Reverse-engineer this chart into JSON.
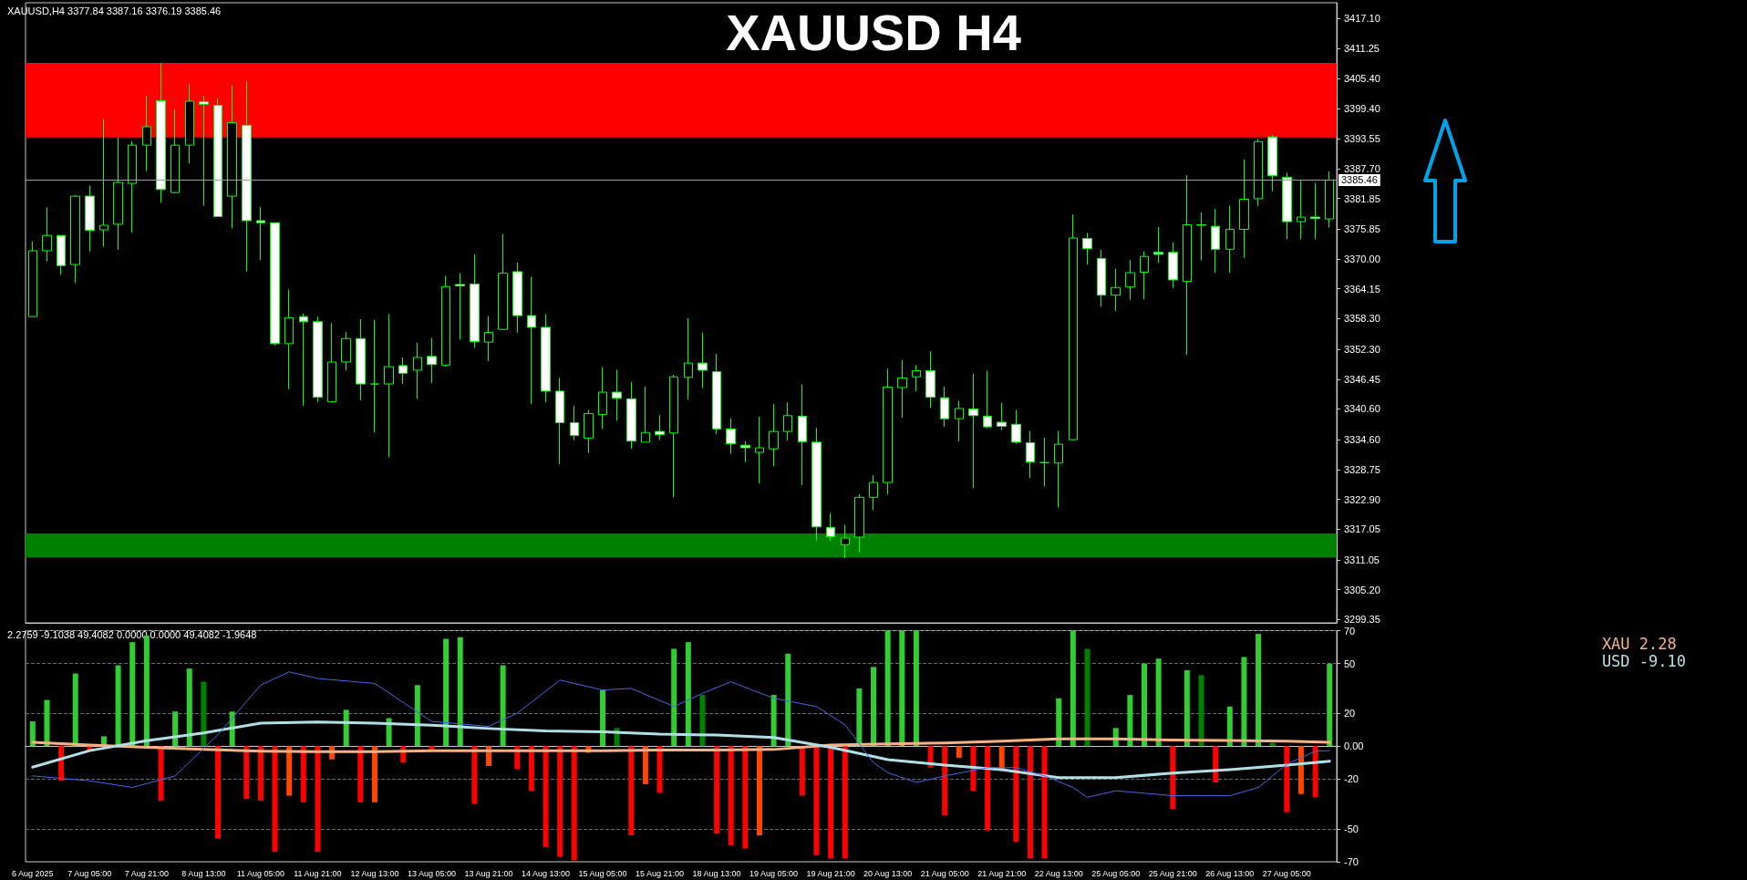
{
  "chart_data": [
    {
      "type": "candlestick",
      "title": "XAUUSD H4",
      "color": "#00ff00",
      "tick_labels": "y",
      "annotations": [
        "XAUUSD,H4 3377.84 3387.16 3376.19 3385.46"
      ],
      "categories": [
        null,
        null,
        null,
        null,
        null,
        null,
        null,
        null,
        null,
        null,
        null,
        null,
        null,
        null,
        null,
        null,
        null,
        null,
        null,
        null,
        null,
        null,
        null,
        null,
        null,
        null,
        null,
        null,
        null,
        null,
        null,
        null,
        null,
        null,
        null,
        null,
        null,
        null,
        null,
        null,
        null,
        null,
        null,
        null,
        null,
        null,
        null,
        null,
        null,
        null,
        null,
        null,
        null,
        null,
        null,
        null,
        null,
        null,
        null,
        null,
        null,
        null,
        null,
        null,
        null,
        null,
        null,
        null,
        null,
        null,
        null,
        null,
        null,
        null,
        null,
        null,
        null,
        null,
        null,
        null,
        null,
        null,
        null,
        null,
        null,
        null,
        null,
        null,
        null,
        null,
        null,
        null
      ],
      "ohlc": [
        [
          3358.7,
          3373.4,
          3358.7,
          3371.6
        ],
        [
          3371.6,
          3380.1,
          3369.5,
          3374.6
        ],
        [
          3374.6,
          3374.6,
          3366.9,
          3368.7
        ],
        [
          3368.9,
          3382.5,
          3365.3,
          3382.3
        ],
        [
          3382.3,
          3384.4,
          3371.5,
          3375.6
        ],
        [
          3375.7,
          3397.4,
          3372.4,
          3376.6
        ],
        [
          3376.8,
          3393.8,
          3371.8,
          3385.0
        ],
        [
          3384.8,
          3393.1,
          3375.2,
          3392.3
        ],
        [
          3392.3,
          3401.9,
          3387.2,
          3395.9
        ],
        [
          3401.0,
          3408.4,
          3381.0,
          3383.6
        ],
        [
          3383.0,
          3399.3,
          3382.8,
          3392.3
        ],
        [
          3392.3,
          3404.2,
          3388.7,
          3400.9
        ],
        [
          3400.8,
          3401.9,
          3380.4,
          3400.3
        ],
        [
          3400.1,
          3401.4,
          3378.2,
          3378.3
        ],
        [
          3382.3,
          3404.0,
          3376.0,
          3396.7
        ],
        [
          3396.2,
          3404.8,
          3367.6,
          3377.5
        ],
        [
          3377.5,
          3380.2,
          3369.8,
          3377.1
        ],
        [
          3377.1,
          3377.1,
          3353.0,
          3353.4
        ],
        [
          3353.4,
          3364.0,
          3344.5,
          3358.5
        ],
        [
          3358.7,
          3359.3,
          3341.2,
          3357.7
        ],
        [
          3357.7,
          3358.7,
          3341.9,
          3342.9
        ],
        [
          3342.0,
          3357.4,
          3342.0,
          3349.8
        ],
        [
          3349.8,
          3355.7,
          3348.2,
          3354.4
        ],
        [
          3354.4,
          3358.2,
          3342.3,
          3345.5
        ],
        [
          3345.5,
          3358.1,
          3336.0,
          3345.5
        ],
        [
          3345.5,
          3359.2,
          3331.1,
          3348.9
        ],
        [
          3349.1,
          3350.7,
          3345.5,
          3347.6
        ],
        [
          3348.2,
          3353.6,
          3342.6,
          3350.7
        ],
        [
          3350.9,
          3354.5,
          3345.7,
          3349.3
        ],
        [
          3349.2,
          3366.7,
          3348.9,
          3364.6
        ],
        [
          3365.0,
          3367.2,
          3354.2,
          3364.7
        ],
        [
          3365.1,
          3370.9,
          3352.6,
          3353.8
        ],
        [
          3353.7,
          3358.8,
          3350.0,
          3355.6
        ],
        [
          3356.2,
          3374.9,
          3356.1,
          3367.2
        ],
        [
          3367.5,
          3369.3,
          3355.5,
          3358.9
        ],
        [
          3358.9,
          3366.5,
          3341.6,
          3356.6
        ],
        [
          3356.6,
          3359.2,
          3341.9,
          3344.1
        ],
        [
          3344.1,
          3346.7,
          3329.8,
          3337.9
        ],
        [
          3337.9,
          3341.2,
          3334.5,
          3335.4
        ],
        [
          3334.9,
          3340.4,
          3332.0,
          3339.7
        ],
        [
          3339.5,
          3348.8,
          3336.7,
          3343.9
        ],
        [
          3343.9,
          3348.3,
          3338.3,
          3342.7
        ],
        [
          3342.6,
          3345.9,
          3332.8,
          3334.3
        ],
        [
          3334.1,
          3345.0,
          3334.1,
          3336.0
        ],
        [
          3336.2,
          3339.4,
          3334.5,
          3335.6
        ],
        [
          3335.9,
          3347.3,
          3323.3,
          3346.9
        ],
        [
          3346.8,
          3358.4,
          3342.4,
          3349.6
        ],
        [
          3349.6,
          3355.5,
          3344.7,
          3348.2
        ],
        [
          3347.9,
          3351.4,
          3335.7,
          3336.7
        ],
        [
          3336.7,
          3338.8,
          3331.8,
          3333.8
        ],
        [
          3333.5,
          3334.3,
          3330.2,
          3333.0
        ],
        [
          3332.1,
          3339.1,
          3326.0,
          3333.0
        ],
        [
          3332.8,
          3341.6,
          3329.4,
          3336.2
        ],
        [
          3336.2,
          3341.9,
          3334.4,
          3339.3
        ],
        [
          3339.2,
          3345.4,
          3325.7,
          3334.2
        ],
        [
          3334.1,
          3336.9,
          3314.8,
          3317.5
        ],
        [
          3317.4,
          3320.2,
          3314.8,
          3315.6
        ],
        [
          3314.0,
          3317.9,
          3311.4,
          3315.3
        ],
        [
          3315.5,
          3323.9,
          3312.5,
          3323.3
        ],
        [
          3323.3,
          3327.6,
          3320.8,
          3326.2
        ],
        [
          3326.2,
          3348.5,
          3323.9,
          3344.9
        ],
        [
          3344.8,
          3350.2,
          3338.9,
          3346.7
        ],
        [
          3346.9,
          3349.2,
          3344.1,
          3348.1
        ],
        [
          3348.1,
          3351.9,
          3340.8,
          3342.9
        ],
        [
          3342.8,
          3345.0,
          3337.1,
          3338.7
        ],
        [
          3338.7,
          3342.2,
          3334.3,
          3340.7
        ],
        [
          3340.6,
          3347.5,
          3325.1,
          3339.3
        ],
        [
          3339.2,
          3348.1,
          3336.8,
          3337.1
        ],
        [
          3338.0,
          3341.8,
          3336.5,
          3337.2
        ],
        [
          3337.6,
          3340.4,
          3333.8,
          3334.1
        ],
        [
          3334.0,
          3336.3,
          3327.1,
          3330.2
        ],
        [
          3330.1,
          3335.0,
          3325.4,
          3330.1
        ],
        [
          3330.0,
          3336.3,
          3321.3,
          3333.7
        ],
        [
          3334.6,
          3378.7,
          3334.6,
          3374.1
        ],
        [
          3374.0,
          3375.1,
          3368.9,
          3372.0
        ],
        [
          3370.1,
          3371.8,
          3360.6,
          3362.9
        ],
        [
          3362.9,
          3368.1,
          3359.8,
          3364.4
        ],
        [
          3364.5,
          3369.8,
          3362.0,
          3367.3
        ],
        [
          3367.4,
          3371.5,
          3362.1,
          3370.5
        ],
        [
          3371.3,
          3376.3,
          3369.2,
          3370.9
        ],
        [
          3371.3,
          3373.2,
          3364.3,
          3365.9
        ],
        [
          3365.6,
          3386.4,
          3351.2,
          3376.7
        ],
        [
          3376.7,
          3379.1,
          3369.7,
          3376.6
        ],
        [
          3376.4,
          3379.8,
          3367.3,
          3371.9
        ],
        [
          3371.9,
          3380.4,
          3367.3,
          3375.8
        ],
        [
          3375.8,
          3389.5,
          3370.2,
          3381.7
        ],
        [
          3381.8,
          3393.5,
          3380.3,
          3393.0
        ],
        [
          3393.9,
          3394.3,
          3383.3,
          3386.3
        ],
        [
          3386.0,
          3386.9,
          3373.9,
          3377.3
        ],
        [
          3377.3,
          3385.5,
          3373.9,
          3378.2
        ],
        [
          3378.2,
          3384.9,
          3373.9,
          3377.9
        ],
        [
          3377.84,
          3387.16,
          3376.19,
          3385.46
        ]
      ],
      "ylim": [
        3298.7,
        3420.2
      ],
      "yticks": [
        {
          "value": 3417.1,
          "label": "3417.10"
        },
        {
          "value": 3411.25,
          "label": "3411.25"
        },
        {
          "value": 3405.4,
          "label": "3405.40"
        },
        {
          "value": 3399.4,
          "label": "3399.40"
        },
        {
          "value": 3393.55,
          "label": "3393.55"
        },
        {
          "value": 3387.7,
          "label": "3387.70"
        },
        {
          "value": 3381.85,
          "label": "3381.85"
        },
        {
          "value": 3375.85,
          "label": "3375.85"
        },
        {
          "value": 3370,
          "label": "3370.00"
        },
        {
          "value": 3364.15,
          "label": "3364.15"
        },
        {
          "value": 3358.3,
          "label": "3358.30"
        },
        {
          "value": 3352.3,
          "label": "3352.30"
        },
        {
          "value": 3346.45,
          "label": "3346.45"
        },
        {
          "value": 3340.6,
          "label": "3340.60"
        },
        {
          "value": 3334.6,
          "label": "3334.60"
        },
        {
          "value": 3328.75,
          "label": "3328.75"
        },
        {
          "value": 3322.9,
          "label": "3322.90"
        },
        {
          "value": 3317.05,
          "label": "3317.05"
        },
        {
          "value": 3311.05,
          "label": "3311.05"
        },
        {
          "value": 3305.2,
          "label": "3305.20"
        },
        {
          "value": 3299.35,
          "label": "3299.35"
        }
      ],
      "ref_lines": [
        {
          "axis": "y",
          "value": 3385.46,
          "label": "3385.46",
          "color": "#9a9aa8"
        }
      ],
      "bands": [
        {
          "axis": "y",
          "from": 3393.8,
          "to": 3408.4,
          "color": "#ff0000"
        },
        {
          "axis": "y",
          "from": 3311.5,
          "to": 3316.2,
          "color": "#008000"
        }
      ]
    },
    {
      "type": "bar",
      "grid": "y",
      "legend": "top right",
      "annotations": [
        "2.2759 -9.1038 49.4082 0.0000 0.0000 49.4082 -1.9648"
      ],
      "categories": [
        "6 Aug 2025",
        null,
        null,
        null,
        "7 Aug 05:00",
        null,
        null,
        null,
        "7 Aug 21:00",
        null,
        null,
        null,
        "8 Aug 13:00",
        null,
        null,
        null,
        "11 Aug 05:00",
        null,
        null,
        null,
        "11 Aug 21:00",
        null,
        null,
        null,
        "12 Aug 13:00",
        null,
        null,
        null,
        "13 Aug 05:00",
        null,
        null,
        null,
        "13 Aug 21:00",
        null,
        null,
        null,
        "14 Aug 13:00",
        null,
        null,
        null,
        "15 Aug 05:00",
        null,
        null,
        null,
        "15 Aug 21:00",
        null,
        null,
        null,
        "18 Aug 13:00",
        null,
        null,
        null,
        "19 Aug 05:00",
        null,
        null,
        null,
        "19 Aug 21:00",
        null,
        null,
        null,
        "20 Aug 13:00",
        null,
        null,
        null,
        "21 Aug 05:00",
        null,
        null,
        null,
        "21 Aug 21:00",
        null,
        null,
        null,
        "22 Aug 13:00",
        null,
        null,
        null,
        "25 Aug 05:00",
        null,
        null,
        null,
        "25 Aug 21:00",
        null,
        null,
        null,
        "26 Aug 13:00",
        null,
        null,
        null,
        "27 Aug 05:00",
        null,
        null,
        null
      ],
      "series": [
        {
          "type": "bar",
          "values": [
            15,
            28,
            -21,
            44,
            -3,
            6,
            49,
            63,
            67,
            -33,
            21,
            47,
            39,
            -56,
            21,
            -32,
            -33,
            -64,
            -30,
            -34,
            -64,
            -8,
            22,
            -34,
            -34,
            17,
            -10,
            37,
            -2,
            65,
            66,
            -35,
            -12,
            49,
            -14,
            -27,
            -61,
            -67,
            -69,
            -4,
            34,
            11,
            -54,
            -23,
            -28,
            59,
            63,
            31,
            -53,
            -60,
            -62,
            -54,
            31,
            56,
            -30,
            -66,
            -68,
            -68,
            35,
            48,
            70,
            70,
            70,
            -13,
            -42,
            -7,
            -27,
            -51,
            -15,
            -58,
            -68,
            -68,
            29,
            70,
            59,
            null,
            11,
            31,
            50,
            53,
            -38,
            46,
            43,
            -22,
            24,
            54,
            68,
            2,
            -40,
            -29,
            -31,
            50
          ],
          "colors": [
            "#32cd32",
            "#32cd32",
            "#ff0000",
            "#32cd32",
            "#ff0000",
            "#32cd32",
            "#32cd32",
            "#32cd32",
            "#32cd32",
            "#ff0000",
            "#32cd32",
            "#32cd32",
            "#008000",
            "#ff0000",
            "#32cd32",
            "#ff0000",
            "#ff0000",
            "#ff0000",
            "#ff4500",
            "#ff0000",
            "#ff0000",
            "#ff4500",
            "#32cd32",
            "#ff0000",
            "#ff4500",
            "#32cd32",
            "#ff0000",
            "#32cd32",
            "#ff0000",
            "#32cd32",
            "#32cd32",
            "#ff0000",
            "#ff4500",
            "#32cd32",
            "#ff0000",
            "#ff0000",
            "#ff0000",
            "#ff0000",
            "#ff0000",
            "#ff4500",
            "#32cd32",
            "#008000",
            "#ff0000",
            "#ff4500",
            "#ff0000",
            "#32cd32",
            "#32cd32",
            "#008000",
            "#ff0000",
            "#ff0000",
            "#ff0000",
            "#ff4500",
            "#32cd32",
            "#32cd32",
            "#ff0000",
            "#ff0000",
            "#ff0000",
            "#ff0000",
            "#32cd32",
            "#32cd32",
            "#32cd32",
            "#32cd32",
            "#32cd32",
            "#ff0000",
            "#ff0000",
            "#ff4500",
            "#ff0000",
            "#ff0000",
            "#ff4500",
            "#ff0000",
            "#ff0000",
            "#ff0000",
            "#32cd32",
            "#32cd32",
            "#008000",
            null,
            "#32cd32",
            "#32cd32",
            "#32cd32",
            "#32cd32",
            "#ff0000",
            "#32cd32",
            "#008000",
            "#ff0000",
            "#32cd32",
            "#32cd32",
            "#32cd32",
            "#008000",
            "#ff0000",
            "#ff4500",
            "#ff0000",
            "#32cd32"
          ]
        },
        {
          "type": "line",
          "name": "XAU 2.28",
          "color": "#f4b183",
          "values": [
            2.3,
            null,
            null,
            null,
            0.7,
            null,
            null,
            null,
            -0.7,
            null,
            null,
            null,
            -2,
            null,
            null,
            null,
            -3,
            null,
            null,
            null,
            -3.3,
            null,
            null,
            null,
            -3.3,
            null,
            null,
            null,
            -2.7,
            null,
            null,
            null,
            -2.7,
            null,
            null,
            null,
            -2.7,
            null,
            null,
            null,
            -2.7,
            null,
            null,
            null,
            -2.3,
            null,
            null,
            null,
            -2.3,
            null,
            null,
            null,
            -2,
            null,
            null,
            null,
            0.7,
            null,
            null,
            null,
            1.4,
            null,
            null,
            null,
            2,
            null,
            null,
            null,
            3,
            null,
            null,
            null,
            4.4,
            null,
            null,
            null,
            4.4,
            null,
            null,
            null,
            3.7,
            null,
            null,
            null,
            3.4,
            null,
            null,
            null,
            3,
            null,
            null,
            2.3
          ]
        },
        {
          "type": "line",
          "name": "USD -9.10",
          "color": "#b0e0e6",
          "values": [
            -12.7,
            null,
            null,
            null,
            -2.7,
            null,
            null,
            null,
            3.3,
            null,
            null,
            null,
            8,
            null,
            null,
            null,
            14,
            null,
            null,
            null,
            14.7,
            null,
            null,
            null,
            14,
            null,
            null,
            null,
            12.7,
            null,
            null,
            null,
            10.7,
            null,
            null,
            null,
            9.3,
            null,
            null,
            null,
            8.7,
            null,
            null,
            null,
            7.3,
            null,
            null,
            null,
            6.7,
            null,
            null,
            null,
            5.3,
            null,
            null,
            null,
            -0.7,
            null,
            null,
            null,
            -8.1,
            null,
            null,
            null,
            -11.5,
            null,
            null,
            null,
            -14.2,
            null,
            null,
            null,
            -19,
            null,
            null,
            null,
            -19,
            null,
            null,
            null,
            -16.3,
            null,
            null,
            null,
            -14.2,
            null,
            null,
            null,
            -11.5,
            null,
            null,
            -9.1
          ]
        },
        {
          "type": "line",
          "color": "#4169e1",
          "values": [
            -18,
            null,
            null,
            null,
            -21,
            null,
            null,
            -25,
            null,
            null,
            -18,
            null,
            null,
            7,
            null,
            null,
            37,
            null,
            45,
            null,
            41,
            null,
            null,
            null,
            38,
            null,
            null,
            null,
            15,
            null,
            null,
            null,
            12,
            null,
            20,
            null,
            null,
            40,
            null,
            null,
            34,
            null,
            35,
            null,
            null,
            24,
            null,
            32,
            null,
            39,
            null,
            null,
            29,
            null,
            null,
            24,
            null,
            13,
            null,
            -10,
            -16,
            null,
            -22,
            null,
            -18,
            null,
            null,
            -13,
            null,
            -13,
            null,
            -18,
            null,
            -25,
            -31,
            null,
            -27,
            null,
            null,
            null,
            -30,
            null,
            null,
            null,
            -30,
            null,
            -25,
            null,
            -11,
            null,
            -3,
            -2.7
          ]
        }
      ],
      "ylim": [
        -70,
        70
      ],
      "yticks": [
        70,
        50,
        20,
        {
          "value": 0,
          "label": "0.00"
        },
        -20,
        -50,
        -70
      ]
    }
  ]
}
